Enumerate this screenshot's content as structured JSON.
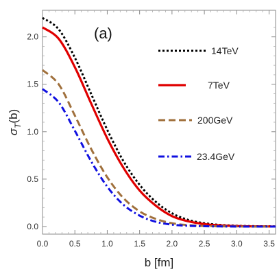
{
  "chart_data": {
    "type": "line",
    "panel_label": "(a)",
    "xlabel": "b [fm]",
    "ylabel": "σ_T(b)",
    "xlim": [
      0,
      3.6
    ],
    "ylim": [
      -0.08,
      2.28
    ],
    "x_ticks": [
      0.0,
      0.5,
      1.0,
      1.5,
      2.0,
      2.5,
      3.0,
      3.5
    ],
    "x_tick_labels": [
      "0.0",
      "0.5",
      "1.0",
      "1.5",
      "2.0",
      "2.5",
      "3.0",
      "3.5"
    ],
    "y_ticks": [
      0.0,
      0.5,
      1.0,
      1.5,
      2.0
    ],
    "y_tick_labels": [
      "0.0",
      "0.5",
      "1.0",
      "1.5",
      "2.0"
    ],
    "grid": false,
    "legend_position": "right",
    "series": [
      {
        "name": "14TeV",
        "color": "#000000",
        "style": "dotted",
        "x": [
          0.0,
          0.25,
          0.5,
          0.75,
          1.0,
          1.25,
          1.5,
          1.75,
          2.0,
          2.25,
          2.5,
          2.75,
          3.0,
          3.25,
          3.5,
          3.6
        ],
        "y": [
          2.2,
          2.08,
          1.78,
          1.4,
          1.02,
          0.69,
          0.44,
          0.26,
          0.14,
          0.07,
          0.035,
          0.017,
          0.008,
          0.004,
          0.002,
          0.001
        ]
      },
      {
        "name": "7TeV",
        "color": "#e00000",
        "style": "solid",
        "x": [
          0.0,
          0.25,
          0.5,
          0.75,
          1.0,
          1.25,
          1.5,
          1.75,
          2.0,
          2.25,
          2.5,
          2.75,
          3.0,
          3.25,
          3.5,
          3.6
        ],
        "y": [
          2.1,
          1.98,
          1.68,
          1.3,
          0.93,
          0.62,
          0.38,
          0.22,
          0.11,
          0.055,
          0.026,
          0.012,
          0.005,
          0.002,
          0.001,
          0.0
        ]
      },
      {
        "name": "200GeV",
        "color": "#a0703c",
        "style": "dashed",
        "x": [
          0.0,
          0.25,
          0.5,
          0.75,
          1.0,
          1.25,
          1.5,
          1.75,
          2.0,
          2.25,
          2.5,
          2.75,
          3.0,
          3.25,
          3.5,
          3.6
        ],
        "y": [
          1.65,
          1.5,
          1.17,
          0.82,
          0.52,
          0.3,
          0.16,
          0.08,
          0.035,
          0.015,
          0.006,
          0.002,
          0.001,
          0.0,
          0.0,
          0.0
        ]
      },
      {
        "name": "23.4GeV",
        "color": "#1010e0",
        "style": "dashdot",
        "x": [
          0.0,
          0.25,
          0.5,
          0.75,
          1.0,
          1.25,
          1.5,
          1.75,
          2.0,
          2.25,
          2.5,
          2.75,
          3.0,
          3.25,
          3.5,
          3.6
        ],
        "y": [
          1.45,
          1.31,
          1.01,
          0.69,
          0.42,
          0.23,
          0.115,
          0.05,
          0.02,
          0.008,
          0.003,
          0.001,
          0.0,
          0.0,
          0.0,
          0.0
        ]
      }
    ]
  }
}
